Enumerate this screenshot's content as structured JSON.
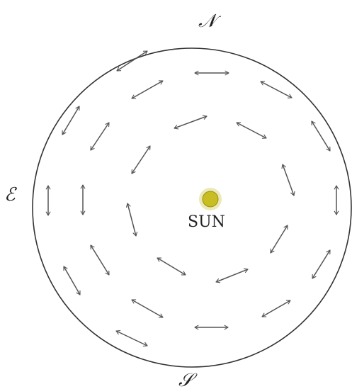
{
  "labels": {
    "north": "𝒩",
    "east": "ℰ",
    "south": "𝒮",
    "sun": "SUN"
  },
  "colors": {
    "sun_fill": "#c8bd23",
    "sun_glow": "#ece9b8",
    "stroke": "#555555",
    "circle": "#333333"
  }
}
